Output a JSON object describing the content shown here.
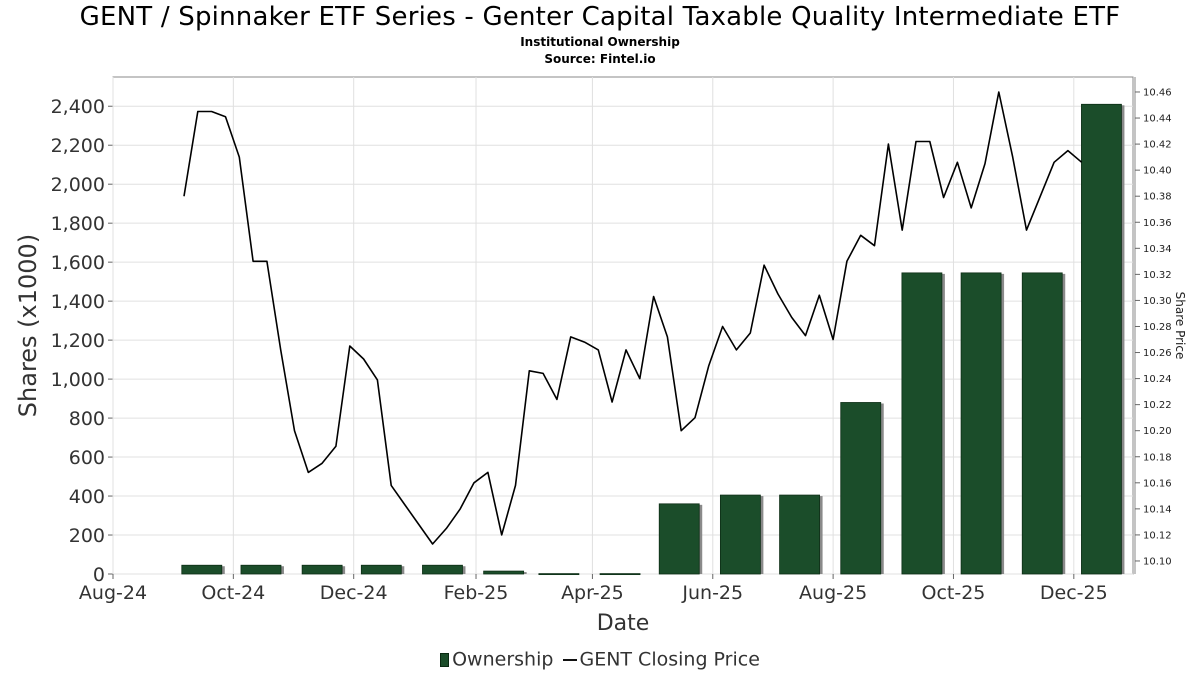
{
  "header": {
    "title": "GENT / Spinnaker ETF Series - Genter Capital Taxable Quality Intermediate ETF",
    "subtitle1": "Institutional Ownership",
    "subtitle2": "Source: Fintel.io"
  },
  "legend": {
    "ownership": "Ownership",
    "price": "GENT Closing Price"
  },
  "colors": {
    "bar": "#1b4d2a",
    "bar_shadow": "#8a8a8a",
    "line": "#000000",
    "grid": "#e0e0e0"
  },
  "chart_data": {
    "type": "bar+line",
    "xlabel": "Date",
    "ylabel": "Shares (x1000)",
    "y2label": "Share Price",
    "ylim": [
      0,
      2550
    ],
    "y2lim": [
      10.09,
      10.4715
    ],
    "xlim": [
      "2024-08-01",
      "2025-12-31"
    ],
    "x_ticks": [
      {
        "label": "Aug-24",
        "date": "2024-08-01"
      },
      {
        "label": "Oct-24",
        "date": "2024-10-01"
      },
      {
        "label": "Dec-24",
        "date": "2024-12-01"
      },
      {
        "label": "Feb-25",
        "date": "2025-02-01"
      },
      {
        "label": "Apr-25",
        "date": "2025-04-01"
      },
      {
        "label": "Jun-25",
        "date": "2025-06-01"
      },
      {
        "label": "Aug-25",
        "date": "2025-08-01"
      },
      {
        "label": "Oct-25",
        "date": "2025-10-01"
      },
      {
        "label": "Dec-25",
        "date": "2025-12-01"
      }
    ],
    "y_ticks": [
      0,
      200,
      400,
      600,
      800,
      1000,
      1200,
      1400,
      1600,
      1800,
      2000,
      2200,
      2400
    ],
    "y_tick_labels": [
      "0",
      "200",
      "400",
      "600",
      "800",
      "1,000",
      "1,200",
      "1,400",
      "1,600",
      "1,800",
      "2,000",
      "2,200",
      "2,400"
    ],
    "y2_ticks": [
      10.1,
      10.12,
      10.14,
      10.16,
      10.18,
      10.2,
      10.22,
      10.24,
      10.26,
      10.28,
      10.3,
      10.32,
      10.34,
      10.36,
      10.38,
      10.4,
      10.42,
      10.44,
      10.46
    ],
    "y2_tick_labels": [
      "10.10",
      "10.12",
      "10.14",
      "10.16",
      "10.18",
      "10.20",
      "10.22",
      "10.24",
      "10.26",
      "10.28",
      "10.30",
      "10.32",
      "10.34",
      "10.36",
      "10.38",
      "10.40",
      "10.42",
      "10.44",
      "10.46"
    ],
    "series": [
      {
        "name": "Ownership",
        "type": "bar",
        "x": [
          "2024-09-15",
          "2024-10-15",
          "2024-11-15",
          "2024-12-15",
          "2025-01-15",
          "2025-02-15",
          "2025-03-15",
          "2025-04-15",
          "2025-05-15",
          "2025-06-15",
          "2025-07-15",
          "2025-08-15",
          "2025-09-15",
          "2025-10-15",
          "2025-11-15",
          "2025-12-15"
        ],
        "values": [
          45,
          45,
          45,
          45,
          45,
          15,
          2,
          2,
          360,
          405,
          405,
          880,
          1545,
          1545,
          1545,
          2410
        ]
      },
      {
        "name": "GENT Closing Price",
        "type": "line",
        "x": [
          "2024-09-06",
          "2024-09-13",
          "2024-09-20",
          "2024-09-27",
          "2024-10-04",
          "2024-10-11",
          "2024-10-18",
          "2024-10-25",
          "2024-11-01",
          "2024-11-08",
          "2024-11-15",
          "2024-11-22",
          "2024-11-29",
          "2024-12-06",
          "2024-12-13",
          "2024-12-20",
          "2024-12-27",
          "2025-01-03",
          "2025-01-10",
          "2025-01-17",
          "2025-01-24",
          "2025-01-31",
          "2025-02-07",
          "2025-02-14",
          "2025-02-21",
          "2025-02-28",
          "2025-03-07",
          "2025-03-14",
          "2025-03-21",
          "2025-03-28",
          "2025-04-04",
          "2025-04-11",
          "2025-04-18",
          "2025-04-25",
          "2025-05-02",
          "2025-05-09",
          "2025-05-16",
          "2025-05-23",
          "2025-05-30",
          "2025-06-06",
          "2025-06-13",
          "2025-06-20",
          "2025-06-27",
          "2025-07-04",
          "2025-07-11",
          "2025-07-18",
          "2025-07-25",
          "2025-08-01",
          "2025-08-08",
          "2025-08-15",
          "2025-08-22",
          "2025-08-29",
          "2025-09-05",
          "2025-09-12",
          "2025-09-19",
          "2025-09-26",
          "2025-10-03",
          "2025-10-10",
          "2025-10-17",
          "2025-10-24",
          "2025-10-31",
          "2025-11-07",
          "2025-11-14",
          "2025-11-21",
          "2025-11-28",
          "2025-12-05"
        ],
        "values": [
          10.38,
          10.445,
          10.445,
          10.441,
          10.41,
          10.33,
          10.33,
          10.262,
          10.2,
          10.168,
          10.175,
          10.188,
          10.265,
          10.255,
          10.239,
          10.158,
          10.143,
          10.128,
          10.113,
          10.125,
          10.14,
          10.16,
          10.168,
          10.12,
          10.158,
          10.246,
          10.244,
          10.224,
          10.272,
          10.268,
          10.262,
          10.222,
          10.262,
          10.24,
          10.303,
          10.272,
          10.2,
          10.21,
          10.25,
          10.28,
          10.262,
          10.275,
          10.327,
          10.305,
          10.287,
          10.273,
          10.304,
          10.27,
          10.33,
          10.35,
          10.342,
          10.42,
          10.354,
          10.422,
          10.422,
          10.379,
          10.406,
          10.371,
          10.405,
          10.46,
          10.41,
          10.354,
          10.38,
          10.406,
          10.415,
          10.406
        ]
      }
    ]
  }
}
